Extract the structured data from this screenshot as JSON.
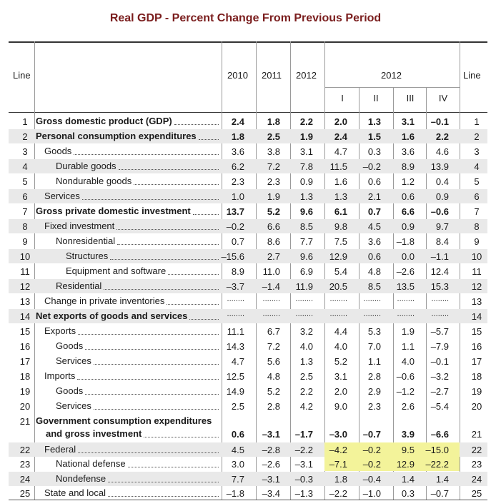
{
  "title": "Real GDP - Percent Change From Previous Period",
  "header": {
    "line_left": "Line",
    "line_right": "Line",
    "years": [
      "2010",
      "2011",
      "2012"
    ],
    "group_year": "2012",
    "quarters": [
      "I",
      "II",
      "III",
      "IV"
    ]
  },
  "rows": [
    {
      "line": "1",
      "label": "Gross domestic product (GDP)",
      "bold": true,
      "indent": 0,
      "vals": [
        "2.4",
        "1.8",
        "2.2",
        "2.0",
        "1.3",
        "3.1",
        "–0.1"
      ]
    },
    {
      "line": "2",
      "label": "Personal consumption expenditures",
      "bold": true,
      "indent": 0,
      "vals": [
        "1.8",
        "2.5",
        "1.9",
        "2.4",
        "1.5",
        "1.6",
        "2.2"
      ]
    },
    {
      "line": "3",
      "label": "Goods",
      "bold": false,
      "indent": 1,
      "vals": [
        "3.6",
        "3.8",
        "3.1",
        "4.7",
        "0.3",
        "3.6",
        "4.6"
      ]
    },
    {
      "line": "4",
      "label": "Durable goods",
      "bold": false,
      "indent": 2,
      "vals": [
        "6.2",
        "7.2",
        "7.8",
        "11.5",
        "–0.2",
        "8.9",
        "13.9"
      ]
    },
    {
      "line": "5",
      "label": "Nondurable goods",
      "bold": false,
      "indent": 2,
      "vals": [
        "2.3",
        "2.3",
        "0.9",
        "1.6",
        "0.6",
        "1.2",
        "0.4"
      ]
    },
    {
      "line": "6",
      "label": "Services",
      "bold": false,
      "indent": 1,
      "vals": [
        "1.0",
        "1.9",
        "1.3",
        "1.3",
        "2.1",
        "0.6",
        "0.9"
      ]
    },
    {
      "line": "7",
      "label": "Gross private domestic investment",
      "bold": true,
      "indent": 0,
      "vals": [
        "13.7",
        "5.2",
        "9.6",
        "6.1",
        "0.7",
        "6.6",
        "–0.6"
      ]
    },
    {
      "line": "8",
      "label": "Fixed investment",
      "bold": false,
      "indent": 1,
      "vals": [
        "–0.2",
        "6.6",
        "8.5",
        "9.8",
        "4.5",
        "0.9",
        "9.7"
      ]
    },
    {
      "line": "9",
      "label": "Nonresidential",
      "bold": false,
      "indent": 2,
      "vals": [
        "0.7",
        "8.6",
        "7.7",
        "7.5",
        "3.6",
        "–1.8",
        "8.4"
      ]
    },
    {
      "line": "10",
      "label": "Structures",
      "bold": false,
      "indent": 3,
      "vals": [
        "–15.6",
        "2.7",
        "9.6",
        "12.9",
        "0.6",
        "0.0",
        "–1.1"
      ]
    },
    {
      "line": "11",
      "label": "Equipment and software",
      "bold": false,
      "indent": 3,
      "vals": [
        "8.9",
        "11.0",
        "6.9",
        "5.4",
        "4.8",
        "–2.6",
        "12.4"
      ]
    },
    {
      "line": "12",
      "label": "Residential",
      "bold": false,
      "indent": 2,
      "vals": [
        "–3.7",
        "–1.4",
        "11.9",
        "20.5",
        "8.5",
        "13.5",
        "15.3"
      ]
    },
    {
      "line": "13",
      "label": "Change in private inventories",
      "bold": false,
      "indent": 1,
      "vals": [
        "........",
        "........",
        "........",
        "........",
        "........",
        "........",
        "........"
      ]
    },
    {
      "line": "14",
      "label": "Net exports of goods and services",
      "bold": true,
      "indent": 0,
      "vals": [
        "........",
        "........",
        "........",
        "........",
        "........",
        "........",
        "........"
      ]
    },
    {
      "line": "15",
      "label": "Exports",
      "bold": false,
      "indent": 1,
      "vals": [
        "11.1",
        "6.7",
        "3.2",
        "4.4",
        "5.3",
        "1.9",
        "–5.7"
      ]
    },
    {
      "line": "16",
      "label": "Goods",
      "bold": false,
      "indent": 2,
      "vals": [
        "14.3",
        "7.2",
        "4.0",
        "4.0",
        "7.0",
        "1.1",
        "–7.9"
      ]
    },
    {
      "line": "17",
      "label": "Services",
      "bold": false,
      "indent": 2,
      "vals": [
        "4.7",
        "5.6",
        "1.3",
        "5.2",
        "1.1",
        "4.0",
        "–0.1"
      ]
    },
    {
      "line": "18",
      "label": "Imports",
      "bold": false,
      "indent": 1,
      "vals": [
        "12.5",
        "4.8",
        "2.5",
        "3.1",
        "2.8",
        "–0.6",
        "–3.2"
      ]
    },
    {
      "line": "19",
      "label": "Goods",
      "bold": false,
      "indent": 2,
      "vals": [
        "14.9",
        "5.2",
        "2.2",
        "2.0",
        "2.9",
        "–1.2",
        "–2.7"
      ]
    },
    {
      "line": "20",
      "label": "Services",
      "bold": false,
      "indent": 2,
      "vals": [
        "2.5",
        "2.8",
        "4.2",
        "9.0",
        "2.3",
        "2.6",
        "–5.4"
      ]
    },
    {
      "line": "21",
      "label": "Government consumption expenditures",
      "label2": "and gross investment",
      "bold": true,
      "indent": 0,
      "vals": [
        "0.6",
        "–3.1",
        "–1.7",
        "–3.0",
        "–0.7",
        "3.9",
        "–6.6"
      ]
    },
    {
      "line": "22",
      "label": "Federal",
      "bold": false,
      "indent": 1,
      "vals": [
        "4.5",
        "–2.8",
        "–2.2",
        "–4.2",
        "–0.2",
        "9.5",
        "–15.0"
      ]
    },
    {
      "line": "23",
      "label": "National defense",
      "bold": false,
      "indent": 2,
      "vals": [
        "3.0",
        "–2.6",
        "–3.1",
        "–7.1",
        "–0.2",
        "12.9",
        "–22.2"
      ]
    },
    {
      "line": "24",
      "label": "Nondefense",
      "bold": false,
      "indent": 2,
      "vals": [
        "7.7",
        "–3.1",
        "–0.3",
        "1.8",
        "–0.4",
        "1.4",
        "1.4"
      ]
    },
    {
      "line": "25",
      "label": "State and local",
      "bold": false,
      "indent": 1,
      "vals": [
        "–1.8",
        "–3.4",
        "–1.3",
        "–2.2",
        "–1.0",
        "0.3",
        "–0.7"
      ]
    }
  ]
}
